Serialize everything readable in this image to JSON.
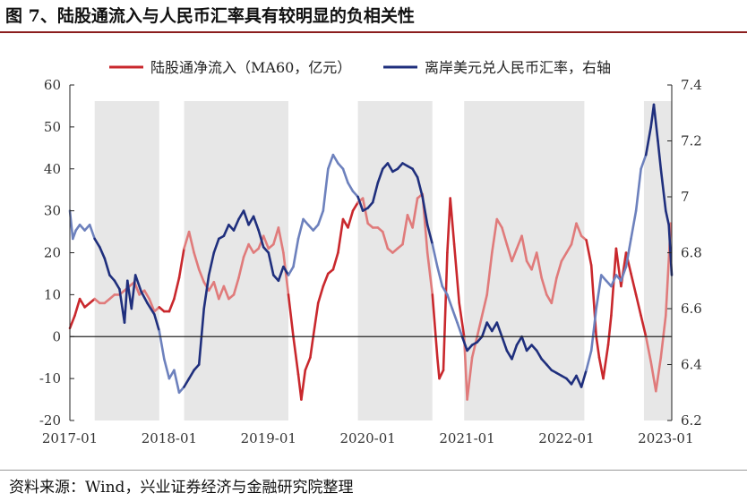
{
  "title": "图 7、陆股通流入与人民币汇率具有较明显的负相关性",
  "source": "资料来源：Wind，兴业证券经济与金融研究院整理",
  "colors": {
    "stock_connect": "#c9282d",
    "stock_connect_light": "#e07b7b",
    "fx": "#1f2f7d",
    "fx_light": "#6d81bd",
    "shade": "#e7e7e7",
    "axis": "#222222"
  },
  "chart_data": {
    "type": "line",
    "title": "",
    "xlabel": "",
    "ylabel": "",
    "ylabel_right": "",
    "x_range": [
      2017.0,
      2023.06
    ],
    "x_ticks": [
      {
        "label": "2017-01",
        "x": 2017.0
      },
      {
        "label": "2018-01",
        "x": 2018.0
      },
      {
        "label": "2019-01",
        "x": 2019.0
      },
      {
        "label": "2020-01",
        "x": 2020.0
      },
      {
        "label": "2021-01",
        "x": 2021.0
      },
      {
        "label": "2022-01",
        "x": 2022.0
      },
      {
        "label": "2023-01",
        "x": 2023.0
      }
    ],
    "ylim": [
      -20,
      60
    ],
    "y_ticks": [
      -20,
      -10,
      0,
      10,
      20,
      30,
      40,
      50,
      60
    ],
    "ylim_right": [
      6.2,
      7.4
    ],
    "y_ticks_right": [
      "6.2",
      "6.4",
      "6.6",
      "6.8",
      "7",
      "7.2",
      "7.4"
    ],
    "grid": false,
    "legend_position": "top",
    "shaded_periods": [
      [
        2017.25,
        2017.9
      ],
      [
        2018.15,
        2019.2
      ],
      [
        2019.9,
        2020.65
      ],
      [
        2020.97,
        2022.18
      ],
      [
        2022.78,
        2023.06
      ]
    ],
    "series": [
      {
        "name": "陆股通净流入（MA60，亿元）",
        "axis": "left",
        "points": [
          [
            2017.0,
            2
          ],
          [
            2017.05,
            5
          ],
          [
            2017.1,
            9
          ],
          [
            2017.15,
            7
          ],
          [
            2017.2,
            8
          ],
          [
            2017.25,
            9
          ],
          [
            2017.3,
            8
          ],
          [
            2017.35,
            8
          ],
          [
            2017.4,
            9
          ],
          [
            2017.45,
            10
          ],
          [
            2017.5,
            10
          ],
          [
            2017.55,
            11
          ],
          [
            2017.6,
            12
          ],
          [
            2017.65,
            13
          ],
          [
            2017.7,
            10
          ],
          [
            2017.75,
            11
          ],
          [
            2017.8,
            9
          ],
          [
            2017.85,
            6
          ],
          [
            2017.9,
            7
          ],
          [
            2017.95,
            6
          ],
          [
            2018.0,
            6
          ],
          [
            2018.05,
            9
          ],
          [
            2018.1,
            14
          ],
          [
            2018.15,
            21
          ],
          [
            2018.2,
            25
          ],
          [
            2018.25,
            20
          ],
          [
            2018.3,
            16
          ],
          [
            2018.35,
            13
          ],
          [
            2018.4,
            11
          ],
          [
            2018.45,
            13
          ],
          [
            2018.5,
            9
          ],
          [
            2018.55,
            12
          ],
          [
            2018.6,
            9
          ],
          [
            2018.65,
            10
          ],
          [
            2018.7,
            14
          ],
          [
            2018.75,
            19
          ],
          [
            2018.8,
            22
          ],
          [
            2018.85,
            20
          ],
          [
            2018.9,
            21
          ],
          [
            2018.95,
            24
          ],
          [
            2019.0,
            21
          ],
          [
            2019.05,
            22
          ],
          [
            2019.1,
            26
          ],
          [
            2019.15,
            20
          ],
          [
            2019.2,
            10
          ],
          [
            2019.25,
            0
          ],
          [
            2019.3,
            -9
          ],
          [
            2019.33,
            -15
          ],
          [
            2019.37,
            -8
          ],
          [
            2019.42,
            -5
          ],
          [
            2019.45,
            0
          ],
          [
            2019.5,
            8
          ],
          [
            2019.55,
            12
          ],
          [
            2019.6,
            15
          ],
          [
            2019.65,
            16
          ],
          [
            2019.7,
            20
          ],
          [
            2019.75,
            28
          ],
          [
            2019.8,
            26
          ],
          [
            2019.85,
            30
          ],
          [
            2019.9,
            32
          ],
          [
            2019.95,
            33
          ],
          [
            2020.0,
            27
          ],
          [
            2020.05,
            26
          ],
          [
            2020.1,
            26
          ],
          [
            2020.15,
            25
          ],
          [
            2020.2,
            21
          ],
          [
            2020.25,
            20
          ],
          [
            2020.3,
            21
          ],
          [
            2020.35,
            22
          ],
          [
            2020.4,
            29
          ],
          [
            2020.45,
            26
          ],
          [
            2020.5,
            33
          ],
          [
            2020.55,
            34
          ],
          [
            2020.6,
            20
          ],
          [
            2020.65,
            10
          ],
          [
            2020.7,
            -5
          ],
          [
            2020.72,
            -10
          ],
          [
            2020.76,
            -8
          ],
          [
            2020.8,
            20
          ],
          [
            2020.83,
            33
          ],
          [
            2020.87,
            22
          ],
          [
            2020.92,
            8
          ],
          [
            2020.97,
            0
          ],
          [
            2021.0,
            -15
          ],
          [
            2021.05,
            -5
          ],
          [
            2021.1,
            0
          ],
          [
            2021.15,
            5
          ],
          [
            2021.2,
            10
          ],
          [
            2021.25,
            20
          ],
          [
            2021.3,
            28
          ],
          [
            2021.35,
            26
          ],
          [
            2021.4,
            22
          ],
          [
            2021.45,
            18
          ],
          [
            2021.5,
            21
          ],
          [
            2021.55,
            24
          ],
          [
            2021.6,
            18
          ],
          [
            2021.65,
            16
          ],
          [
            2021.7,
            20
          ],
          [
            2021.75,
            14
          ],
          [
            2021.8,
            10
          ],
          [
            2021.85,
            8
          ],
          [
            2021.9,
            14
          ],
          [
            2021.95,
            18
          ],
          [
            2022.0,
            20
          ],
          [
            2022.05,
            22
          ],
          [
            2022.1,
            27
          ],
          [
            2022.15,
            24
          ],
          [
            2022.2,
            23
          ],
          [
            2022.25,
            17
          ],
          [
            2022.3,
            0
          ],
          [
            2022.33,
            -5
          ],
          [
            2022.37,
            -10
          ],
          [
            2022.42,
            -2
          ],
          [
            2022.45,
            5
          ],
          [
            2022.5,
            21
          ],
          [
            2022.55,
            12
          ],
          [
            2022.6,
            20
          ],
          [
            2022.65,
            15
          ],
          [
            2022.7,
            10
          ],
          [
            2022.75,
            5
          ],
          [
            2022.8,
            0
          ],
          [
            2022.85,
            -6
          ],
          [
            2022.9,
            -13
          ],
          [
            2022.95,
            -5
          ],
          [
            2023.0,
            5
          ],
          [
            2023.05,
            27
          ]
        ]
      },
      {
        "name": "离岸美元兑人民币汇率，右轴",
        "axis": "right",
        "points": [
          [
            2017.0,
            6.95
          ],
          [
            2017.03,
            6.85
          ],
          [
            2017.06,
            6.88
          ],
          [
            2017.1,
            6.9
          ],
          [
            2017.15,
            6.88
          ],
          [
            2017.2,
            6.9
          ],
          [
            2017.25,
            6.85
          ],
          [
            2017.3,
            6.82
          ],
          [
            2017.35,
            6.78
          ],
          [
            2017.4,
            6.72
          ],
          [
            2017.45,
            6.7
          ],
          [
            2017.5,
            6.67
          ],
          [
            2017.55,
            6.55
          ],
          [
            2017.58,
            6.7
          ],
          [
            2017.62,
            6.6
          ],
          [
            2017.66,
            6.72
          ],
          [
            2017.72,
            6.66
          ],
          [
            2017.78,
            6.62
          ],
          [
            2017.85,
            6.58
          ],
          [
            2017.9,
            6.52
          ],
          [
            2017.95,
            6.42
          ],
          [
            2018.0,
            6.35
          ],
          [
            2018.05,
            6.38
          ],
          [
            2018.1,
            6.3
          ],
          [
            2018.15,
            6.32
          ],
          [
            2018.2,
            6.35
          ],
          [
            2018.25,
            6.38
          ],
          [
            2018.3,
            6.4
          ],
          [
            2018.35,
            6.6
          ],
          [
            2018.4,
            6.72
          ],
          [
            2018.45,
            6.8
          ],
          [
            2018.5,
            6.85
          ],
          [
            2018.55,
            6.86
          ],
          [
            2018.6,
            6.9
          ],
          [
            2018.65,
            6.88
          ],
          [
            2018.7,
            6.92
          ],
          [
            2018.75,
            6.95
          ],
          [
            2018.8,
            6.9
          ],
          [
            2018.85,
            6.93
          ],
          [
            2018.9,
            6.88
          ],
          [
            2018.95,
            6.82
          ],
          [
            2019.0,
            6.8
          ],
          [
            2019.05,
            6.72
          ],
          [
            2019.1,
            6.7
          ],
          [
            2019.15,
            6.75
          ],
          [
            2019.2,
            6.72
          ],
          [
            2019.25,
            6.75
          ],
          [
            2019.3,
            6.85
          ],
          [
            2019.35,
            6.92
          ],
          [
            2019.4,
            6.9
          ],
          [
            2019.45,
            6.88
          ],
          [
            2019.5,
            6.9
          ],
          [
            2019.55,
            6.95
          ],
          [
            2019.6,
            7.1
          ],
          [
            2019.65,
            7.15
          ],
          [
            2019.7,
            7.12
          ],
          [
            2019.75,
            7.1
          ],
          [
            2019.8,
            7.05
          ],
          [
            2019.85,
            7.02
          ],
          [
            2019.9,
            7.0
          ],
          [
            2019.95,
            6.95
          ],
          [
            2020.0,
            6.96
          ],
          [
            2020.05,
            6.98
          ],
          [
            2020.1,
            7.05
          ],
          [
            2020.15,
            7.1
          ],
          [
            2020.2,
            7.12
          ],
          [
            2020.25,
            7.09
          ],
          [
            2020.3,
            7.1
          ],
          [
            2020.35,
            7.12
          ],
          [
            2020.4,
            7.11
          ],
          [
            2020.45,
            7.1
          ],
          [
            2020.5,
            7.07
          ],
          [
            2020.55,
            7.0
          ],
          [
            2020.6,
            6.9
          ],
          [
            2020.65,
            6.83
          ],
          [
            2020.7,
            6.75
          ],
          [
            2020.75,
            6.68
          ],
          [
            2020.8,
            6.65
          ],
          [
            2020.85,
            6.6
          ],
          [
            2020.9,
            6.55
          ],
          [
            2020.95,
            6.5
          ],
          [
            2021.0,
            6.45
          ],
          [
            2021.05,
            6.47
          ],
          [
            2021.1,
            6.48
          ],
          [
            2021.15,
            6.5
          ],
          [
            2021.2,
            6.55
          ],
          [
            2021.25,
            6.52
          ],
          [
            2021.3,
            6.55
          ],
          [
            2021.35,
            6.5
          ],
          [
            2021.4,
            6.45
          ],
          [
            2021.45,
            6.42
          ],
          [
            2021.5,
            6.47
          ],
          [
            2021.55,
            6.5
          ],
          [
            2021.6,
            6.45
          ],
          [
            2021.65,
            6.47
          ],
          [
            2021.7,
            6.45
          ],
          [
            2021.75,
            6.42
          ],
          [
            2021.8,
            6.4
          ],
          [
            2021.85,
            6.38
          ],
          [
            2021.9,
            6.37
          ],
          [
            2021.95,
            6.36
          ],
          [
            2022.0,
            6.35
          ],
          [
            2022.05,
            6.33
          ],
          [
            2022.1,
            6.36
          ],
          [
            2022.15,
            6.32
          ],
          [
            2022.2,
            6.38
          ],
          [
            2022.25,
            6.45
          ],
          [
            2022.3,
            6.6
          ],
          [
            2022.35,
            6.72
          ],
          [
            2022.4,
            6.7
          ],
          [
            2022.45,
            6.68
          ],
          [
            2022.5,
            6.72
          ],
          [
            2022.55,
            6.7
          ],
          [
            2022.6,
            6.75
          ],
          [
            2022.65,
            6.85
          ],
          [
            2022.7,
            6.95
          ],
          [
            2022.75,
            7.1
          ],
          [
            2022.8,
            7.15
          ],
          [
            2022.85,
            7.25
          ],
          [
            2022.88,
            7.33
          ],
          [
            2022.92,
            7.2
          ],
          [
            2022.95,
            7.1
          ],
          [
            2023.0,
            6.95
          ],
          [
            2023.03,
            6.9
          ],
          [
            2023.06,
            6.72
          ]
        ]
      }
    ]
  }
}
